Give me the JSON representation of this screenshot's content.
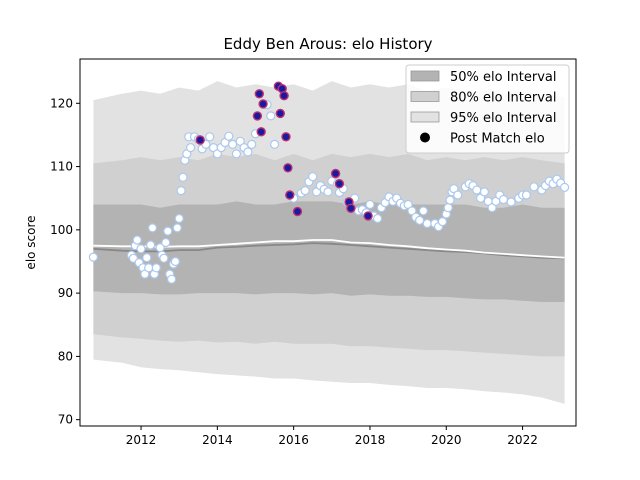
{
  "chart_data": {
    "type": "area",
    "title": "Eddy Ben Arous: elo History",
    "xlabel": "",
    "ylabel": "elo score",
    "xlim": [
      2010.4,
      2023.4
    ],
    "ylim": [
      69,
      127
    ],
    "x_ticks": [
      2012,
      2014,
      2016,
      2018,
      2020,
      2022
    ],
    "y_ticks": [
      70,
      80,
      90,
      100,
      110,
      120
    ],
    "legend_position": "top-right",
    "grid": false,
    "colors": {
      "band_95": "#e2e2e2",
      "band_80": "#d0d0d0",
      "band_50": "#b3b3b3",
      "median_line": "#888888",
      "mean_line": "#ffffff",
      "point_fill": "#ffffff",
      "point_edge": "#aac8ee",
      "loss_fill": "#1a1aa0",
      "loss_edge": "#c03070"
    },
    "legend": [
      {
        "label": "50% elo Interval",
        "kind": "band_50"
      },
      {
        "label": "80% elo Interval",
        "kind": "band_80"
      },
      {
        "label": "95% elo Interval",
        "kind": "band_95"
      },
      {
        "label": "Post Match elo",
        "kind": "marker"
      }
    ],
    "bands": {
      "x": [
        2010.75,
        2011.5,
        2012.0,
        2012.5,
        2013.0,
        2013.5,
        2014.0,
        2014.5,
        2015.0,
        2015.5,
        2016.0,
        2016.5,
        2017.0,
        2017.5,
        2018.0,
        2018.5,
        2019.0,
        2019.5,
        2020.0,
        2020.5,
        2021.0,
        2021.5,
        2022.0,
        2022.5,
        2023.1
      ],
      "p95_upper": [
        120.5,
        121.5,
        122.0,
        121.5,
        122.5,
        122.0,
        123.5,
        122.5,
        123.0,
        122.5,
        123.0,
        122.0,
        123.5,
        122.5,
        123.0,
        122.5,
        123.0,
        122.0,
        122.5,
        122.0,
        122.0,
        121.5,
        122.0,
        121.5,
        121.0
      ],
      "p80_upper": [
        110.5,
        111.0,
        111.5,
        111.0,
        111.5,
        111.0,
        112.0,
        111.5,
        112.0,
        111.0,
        112.0,
        111.0,
        112.0,
        111.5,
        112.0,
        111.5,
        112.0,
        111.0,
        111.5,
        111.0,
        111.5,
        111.0,
        111.5,
        111.0,
        110.5
      ],
      "p50_upper": [
        104.0,
        104.0,
        104.0,
        103.5,
        104.0,
        104.0,
        104.0,
        104.5,
        104.0,
        104.0,
        104.5,
        104.5,
        104.5,
        104.0,
        104.5,
        104.0,
        104.0,
        104.0,
        104.0,
        104.0,
        103.5,
        103.5,
        104.0,
        103.5,
        103.5
      ],
      "p50_lower": [
        90.3,
        90.0,
        90.0,
        89.8,
        89.8,
        90.0,
        90.0,
        90.0,
        89.8,
        90.0,
        90.0,
        89.8,
        90.0,
        89.6,
        89.8,
        89.6,
        89.6,
        89.4,
        89.4,
        89.2,
        89.0,
        89.0,
        88.8,
        88.6,
        88.6
      ],
      "p80_lower": [
        83.5,
        83.0,
        82.8,
        82.5,
        82.3,
        82.5,
        82.2,
        82.3,
        82.0,
        82.3,
        82.0,
        82.0,
        82.0,
        81.6,
        81.6,
        81.4,
        81.2,
        81.0,
        81.0,
        80.8,
        80.6,
        80.4,
        80.2,
        80.0,
        80.0
      ],
      "p95_lower": [
        79.5,
        79.0,
        78.3,
        78.0,
        77.8,
        77.5,
        77.2,
        77.0,
        76.8,
        76.5,
        76.5,
        76.2,
        76.0,
        75.8,
        75.8,
        75.5,
        75.3,
        75.0,
        75.0,
        74.8,
        74.5,
        74.3,
        74.0,
        73.5,
        72.5
      ],
      "median": [
        97.0,
        96.7,
        96.6,
        96.6,
        96.8,
        96.8,
        97.2,
        97.3,
        97.5,
        97.6,
        97.7,
        97.9,
        97.8,
        97.6,
        97.4,
        97.2,
        97.0,
        96.8,
        96.6,
        96.5,
        96.3,
        96.0,
        95.8,
        95.6,
        95.5
      ],
      "mean": [
        97.5,
        97.4,
        97.4,
        97.3,
        97.4,
        97.4,
        97.6,
        97.8,
        98.0,
        98.2,
        98.2,
        98.4,
        98.4,
        98.0,
        97.9,
        97.6,
        97.4,
        97.1,
        96.9,
        96.7,
        96.4,
        96.2,
        96.0,
        95.8,
        95.6
      ]
    },
    "points": {
      "x": [
        2010.75,
        2011.75,
        2011.8,
        2011.85,
        2011.9,
        2011.95,
        2012.0,
        2012.05,
        2012.1,
        2012.15,
        2012.2,
        2012.25,
        2012.3,
        2012.35,
        2012.4,
        2012.5,
        2012.55,
        2012.6,
        2012.65,
        2012.7,
        2012.75,
        2012.8,
        2012.85,
        2012.9,
        2012.95,
        2013.0,
        2013.05,
        2013.1,
        2013.15,
        2013.2,
        2013.25,
        2013.3,
        2013.4,
        2013.5,
        2013.6,
        2013.7,
        2013.8,
        2013.9,
        2014.0,
        2014.1,
        2014.2,
        2014.3,
        2014.4,
        2014.5,
        2014.6,
        2014.7,
        2014.8,
        2014.9,
        2015.0,
        2015.05,
        2015.1,
        2015.15,
        2015.2,
        2015.3,
        2015.4,
        2015.5,
        2015.6,
        2015.65,
        2015.7,
        2015.75,
        2015.8,
        2015.85,
        2015.9,
        2016.0,
        2016.1,
        2016.2,
        2016.3,
        2016.4,
        2016.5,
        2016.6,
        2016.7,
        2016.8,
        2016.9,
        2017.0,
        2017.1,
        2017.15,
        2017.2,
        2017.3,
        2017.4,
        2017.5,
        2017.6,
        2017.7,
        2017.8,
        2017.9,
        2018.0,
        2018.1,
        2018.2,
        2018.3,
        2018.4,
        2018.5,
        2018.6,
        2018.7,
        2018.8,
        2018.9,
        2019.0,
        2019.1,
        2019.2,
        2019.3,
        2019.4,
        2019.5,
        2019.7,
        2019.8,
        2019.9,
        2020.0,
        2020.05,
        2020.1,
        2020.15,
        2020.2,
        2020.3,
        2020.5,
        2020.6,
        2020.7,
        2020.8,
        2020.9,
        2021.0,
        2021.1,
        2021.2,
        2021.3,
        2021.4,
        2021.5,
        2021.7,
        2021.9,
        2022.0,
        2022.1,
        2022.3,
        2022.5,
        2022.6,
        2022.7,
        2022.8,
        2022.9,
        2023.0,
        2023.1
      ],
      "y": [
        95.7,
        96.0,
        95.5,
        97.5,
        98.4,
        94.8,
        97.0,
        94.0,
        93.0,
        95.6,
        94.0,
        97.6,
        100.3,
        93.0,
        94.0,
        97.2,
        96.0,
        95.5,
        98.0,
        99.8,
        93.0,
        92.2,
        94.6,
        95.0,
        100.3,
        101.8,
        106.2,
        108.3,
        111.0,
        112.0,
        114.7,
        113.0,
        114.7,
        114.3,
        112.8,
        113.5,
        114.7,
        113.0,
        112.0,
        113.0,
        113.8,
        114.8,
        113.5,
        112.0,
        114.0,
        113.0,
        112.3,
        113.5,
        115.2,
        118.0,
        121.5,
        115.5,
        119.9,
        119.8,
        118.0,
        113.5,
        122.7,
        118.4,
        122.3,
        121.2,
        114.7,
        109.8,
        105.5,
        105.0,
        102.9,
        105.8,
        106.2,
        107.6,
        108.4,
        106.0,
        107.0,
        106.4,
        106.0,
        107.7,
        108.9,
        107.3,
        105.9,
        106.5,
        104.4,
        103.4,
        105.0,
        103.0,
        103.2,
        102.7,
        104.0,
        102.2,
        101.8,
        103.5,
        104.3,
        105.2,
        104.5,
        105.0,
        104.2,
        103.8,
        104.0,
        103.0,
        102.0,
        101.5,
        103.0,
        101.0,
        101.0,
        100.5,
        101.3,
        102.5,
        103.5,
        104.7,
        106.0,
        106.5,
        105.5,
        106.8,
        107.3,
        107.0,
        106.3,
        105.0,
        106.0,
        104.5,
        103.5,
        104.5,
        105.5,
        104.8,
        104.4,
        105.0,
        105.5,
        105.5,
        106.8,
        106.3,
        107.0,
        107.7,
        107.3,
        108.0,
        107.4,
        106.7
      ]
    },
    "loss_points": {
      "x": [
        2013.55,
        2015.05,
        2015.1,
        2015.15,
        2015.2,
        2015.6,
        2015.65,
        2015.7,
        2015.75,
        2015.8,
        2015.85,
        2015.9,
        2016.1,
        2017.1,
        2017.2,
        2017.45,
        2017.5,
        2017.95
      ],
      "y": [
        114.2,
        118.0,
        121.5,
        115.5,
        119.9,
        122.7,
        118.4,
        122.3,
        121.2,
        114.7,
        109.8,
        105.5,
        102.9,
        108.9,
        107.3,
        104.4,
        103.4,
        102.2
      ]
    }
  }
}
